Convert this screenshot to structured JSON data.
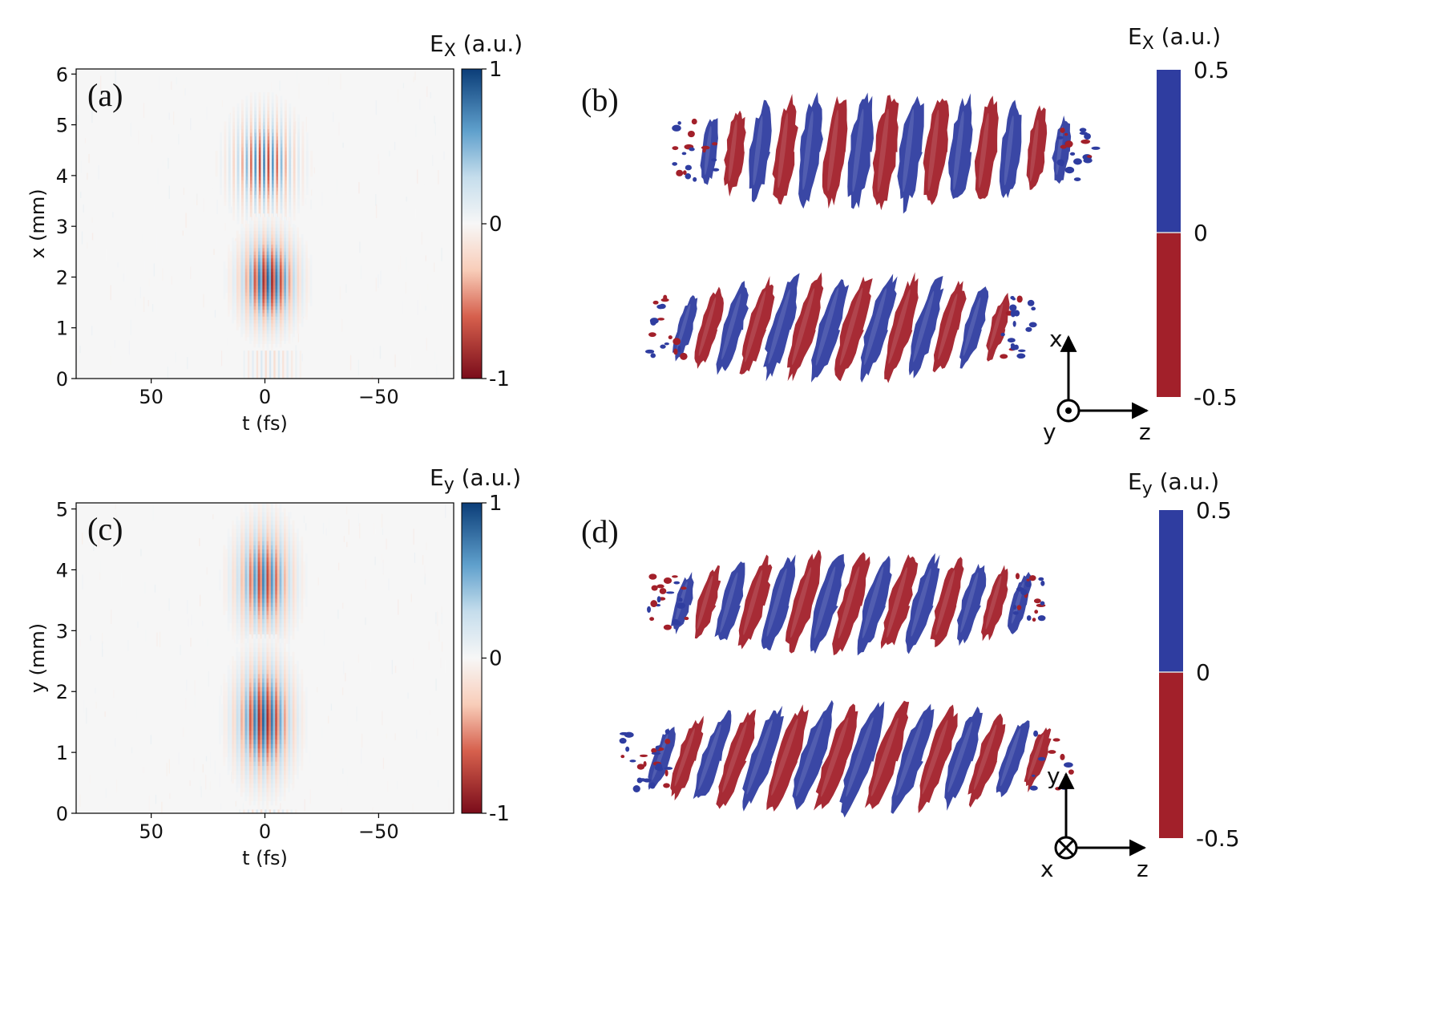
{
  "panels": [
    {
      "id": "a",
      "letter": "(a)",
      "type": "heatmap",
      "colorbar_label_main": "E",
      "colorbar_label_sub": "X",
      "colorbar_label_unit": " (a.u.)",
      "colorbar_ticks": [
        "1",
        "0",
        "-1"
      ],
      "colorbar_range": [
        -1,
        1
      ],
      "x_axis_label": "t (fs)",
      "y_axis_label": "x (mm)",
      "x_ticks": [
        "50",
        "0",
        "−50"
      ],
      "x_tick_values": [
        50,
        0,
        -50
      ],
      "x_range": [
        83,
        -83
      ],
      "y_ticks": [
        "0",
        "1",
        "2",
        "3",
        "4",
        "5",
        "6"
      ],
      "y_tick_values": [
        0,
        1,
        2,
        3,
        4,
        5,
        6
      ],
      "y_range": [
        0,
        6.1
      ],
      "lobes": [
        {
          "t_center": 0,
          "pos_center": 4.2,
          "t_width": 12,
          "pos_width": 0.8,
          "amplitude": 0.7
        },
        {
          "t_center": -2,
          "pos_center": 1.9,
          "t_width": 11,
          "pos_width": 0.75,
          "amplitude": 1.0
        }
      ]
    },
    {
      "id": "b",
      "letter": "(b)",
      "type": "isosurface",
      "colorbar_label_main": "E",
      "colorbar_label_sub": "X",
      "colorbar_label_unit": " (a.u.)",
      "colorbar_ticks": [
        "0.5",
        "0",
        "-0.5"
      ],
      "axes_labels": {
        "up": "x",
        "right": "z",
        "out": "y"
      },
      "out_symbol": "dot"
    },
    {
      "id": "c",
      "letter": "(c)",
      "type": "heatmap",
      "colorbar_label_main": "E",
      "colorbar_label_sub": "y",
      "colorbar_label_unit": " (a.u.)",
      "colorbar_ticks": [
        "1",
        "0",
        "-1"
      ],
      "colorbar_range": [
        -1,
        1
      ],
      "x_axis_label": "t (fs)",
      "y_axis_label": "y (mm)",
      "x_ticks": [
        "50",
        "0",
        "−50"
      ],
      "x_tick_values": [
        50,
        0,
        -50
      ],
      "x_range": [
        83,
        -83
      ],
      "y_ticks": [
        "0",
        "1",
        "2",
        "3",
        "4",
        "5"
      ],
      "y_tick_values": [
        0,
        1,
        2,
        3,
        4,
        5
      ],
      "y_range": [
        0,
        5.1
      ],
      "lobes": [
        {
          "t_center": 0,
          "pos_center": 3.8,
          "t_width": 11,
          "pos_width": 0.75,
          "amplitude": 0.85
        },
        {
          "t_center": 0,
          "pos_center": 1.5,
          "t_width": 11,
          "pos_width": 0.8,
          "amplitude": 1.0
        }
      ]
    },
    {
      "id": "d",
      "letter": "(d)",
      "type": "isosurface",
      "colorbar_label_main": "E",
      "colorbar_label_sub": "y",
      "colorbar_label_unit": " (a.u.)",
      "colorbar_ticks": [
        "0.5",
        "0",
        "-0.5"
      ],
      "axes_labels": {
        "up": "y",
        "right": "z",
        "out": "x"
      },
      "out_symbol": "cross"
    }
  ],
  "colors": {
    "positive": "#2f3da0",
    "negative": "#a2202a",
    "div_pos_dark": "#0b3d78",
    "div_neg_dark": "#7a0c1a",
    "background": "#ffffff"
  },
  "chart_data": [
    {
      "type": "heatmap",
      "title": "(a)",
      "xlabel": "t (fs)",
      "ylabel": "x (mm)",
      "colorbar_label": "Ex (a.u.)",
      "xlim": [
        83,
        -83
      ],
      "ylim": [
        0,
        6.1
      ],
      "clim": [
        -1,
        1
      ],
      "x_ticks": [
        50,
        0,
        -50
      ],
      "y_ticks": [
        0,
        1,
        2,
        3,
        4,
        5,
        6
      ],
      "features": [
        {
          "t": 0,
          "x": 4.2,
          "relative_amplitude": 0.7
        },
        {
          "t": -2,
          "x": 1.9,
          "relative_amplitude": 1.0
        }
      ]
    },
    {
      "type": "heatmap",
      "title": "(c)",
      "xlabel": "t (fs)",
      "ylabel": "y (mm)",
      "colorbar_label": "Ey (a.u.)",
      "xlim": [
        83,
        -83
      ],
      "ylim": [
        0,
        5.1
      ],
      "clim": [
        -1,
        1
      ],
      "x_ticks": [
        50,
        0,
        -50
      ],
      "y_ticks": [
        0,
        1,
        2,
        3,
        4,
        5
      ],
      "features": [
        {
          "t": 0,
          "y": 3.8,
          "relative_amplitude": 0.85
        },
        {
          "t": 0,
          "y": 1.5,
          "relative_amplitude": 1.0
        }
      ]
    }
  ]
}
